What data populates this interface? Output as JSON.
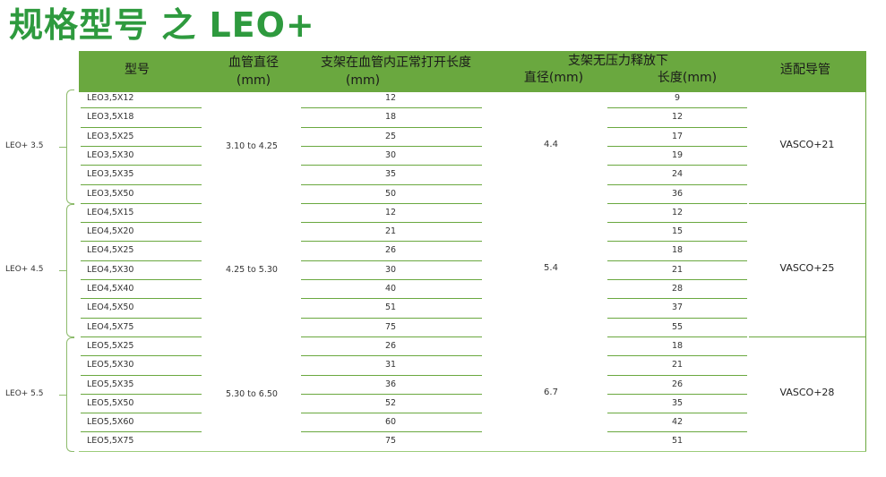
{
  "title": "规格型号 之 LEO+",
  "header": {
    "model": "型号",
    "vessel_diameter": "血管直径",
    "vessel_diameter_unit": "(mm)",
    "stent_in_vessel": "支架在血管内正常打开长度",
    "stent_in_vessel_unit": "(mm)",
    "unconstrained": "支架无压力释放下",
    "diameter": "直径(mm)",
    "length": "长度(mm)",
    "catheter": "适配导管"
  },
  "groups": [
    {
      "label": "LEO+ 3.5",
      "vessel_range": "3.10 to 4.25",
      "free_diameter": "4.4",
      "catheter": "VASCO+21",
      "rows": [
        {
          "model": "LEO3,5X12",
          "open_length": "12",
          "free_length": "9"
        },
        {
          "model": "LEO3,5X18",
          "open_length": "18",
          "free_length": "12"
        },
        {
          "model": "LEO3,5X25",
          "open_length": "25",
          "free_length": "17"
        },
        {
          "model": "LEO3,5X30",
          "open_length": "30",
          "free_length": "19"
        },
        {
          "model": "LEO3,5X35",
          "open_length": "35",
          "free_length": "24"
        },
        {
          "model": "LEO3,5X50",
          "open_length": "50",
          "free_length": "36"
        }
      ]
    },
    {
      "label": "LEO+ 4.5",
      "vessel_range": "4.25 to 5.30",
      "free_diameter": "5.4",
      "catheter": "VASCO+25",
      "rows": [
        {
          "model": "LEO4,5X15",
          "open_length": "12",
          "free_length": "12"
        },
        {
          "model": "LEO4,5X20",
          "open_length": "21",
          "free_length": "15"
        },
        {
          "model": "LEO4,5X25",
          "open_length": "26",
          "free_length": "18"
        },
        {
          "model": "LEO4,5X30",
          "open_length": "30",
          "free_length": "21"
        },
        {
          "model": "LEO4,5X40",
          "open_length": "40",
          "free_length": "28"
        },
        {
          "model": "LEO4,5X50",
          "open_length": "51",
          "free_length": "37"
        },
        {
          "model": "LEO4,5X75",
          "open_length": "75",
          "free_length": "55"
        }
      ]
    },
    {
      "label": "LEO+ 5.5",
      "vessel_range": "5.30 to 6.50",
      "free_diameter": "6.7",
      "catheter": "VASCO+28",
      "rows": [
        {
          "model": "LEO5,5X25",
          "open_length": "26",
          "free_length": "18"
        },
        {
          "model": "LEO5,5X30",
          "open_length": "31",
          "free_length": "21"
        },
        {
          "model": "LEO5,5X35",
          "open_length": "36",
          "free_length": "26"
        },
        {
          "model": "LEO5,5X50",
          "open_length": "52",
          "free_length": "35"
        },
        {
          "model": "LEO5,5X60",
          "open_length": "60",
          "free_length": "42"
        },
        {
          "model": "LEO5,5X75",
          "open_length": "75",
          "free_length": "51"
        }
      ]
    }
  ]
}
